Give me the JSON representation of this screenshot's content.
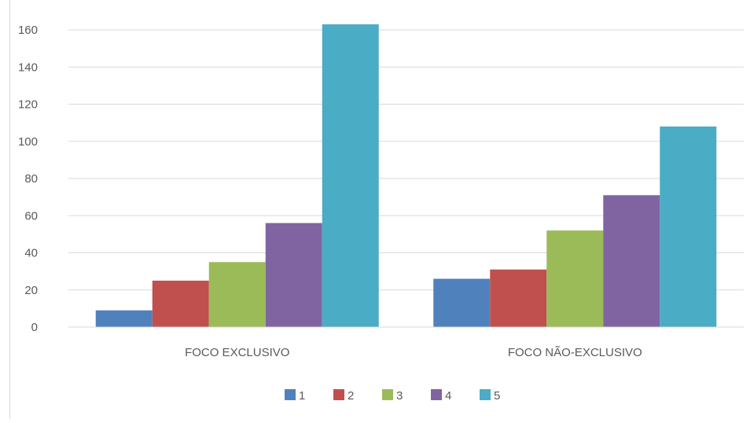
{
  "chart_data": {
    "type": "bar",
    "categories": [
      "FOCO EXCLUSIVO",
      "FOCO NÃO-EXCLUSIVO"
    ],
    "series": [
      {
        "name": "1",
        "values": [
          9,
          26
        ],
        "color": "#4f81bd"
      },
      {
        "name": "2",
        "values": [
          25,
          31
        ],
        "color": "#c0504d"
      },
      {
        "name": "3",
        "values": [
          35,
          52
        ],
        "color": "#9bbb59"
      },
      {
        "name": "4",
        "values": [
          56,
          71
        ],
        "color": "#8064a2"
      },
      {
        "name": "5",
        "values": [
          163,
          108
        ],
        "color": "#4bacc6"
      }
    ],
    "title": "",
    "xlabel": "",
    "ylabel": "",
    "ylim": [
      0,
      160
    ],
    "yticks": [
      0,
      20,
      40,
      60,
      80,
      100,
      120,
      140,
      160
    ],
    "grid": true,
    "legend_position": "bottom"
  }
}
